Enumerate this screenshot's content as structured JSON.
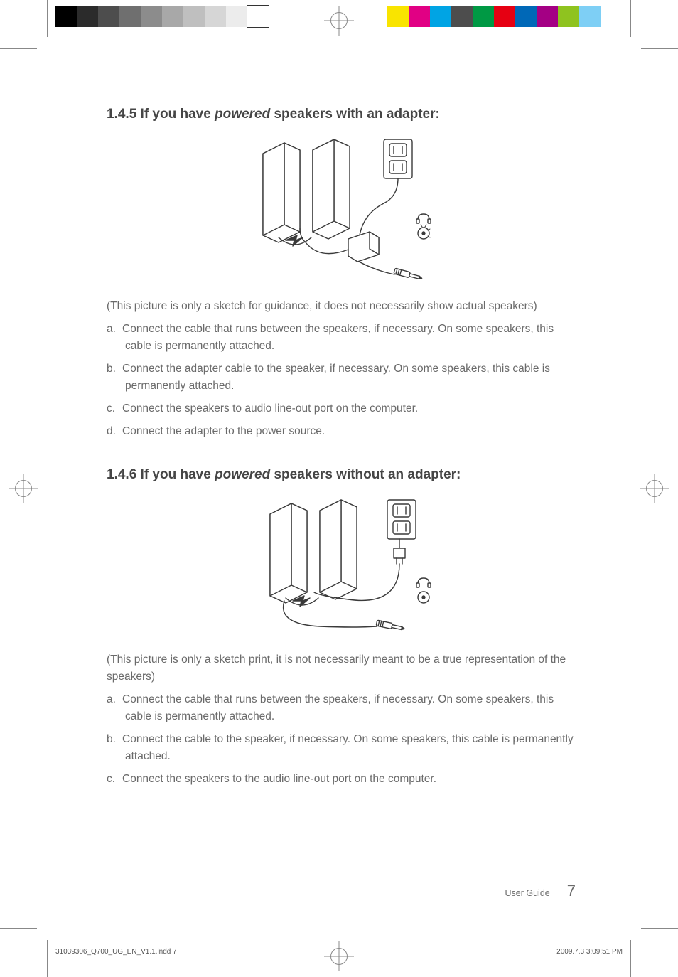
{
  "registration": {
    "left_strip_colors": [
      "#000000",
      "#2b2b2b",
      "#4d4d4d",
      "#6f6f6f",
      "#8c8c8c",
      "#a8a8a8",
      "#bfbfbf",
      "#d6d6d6",
      "#ececec",
      "#ffffff"
    ],
    "right_strip_colors": [
      "#f9e400",
      "#e10084",
      "#00a4e4",
      "#4d4d4d",
      "#009944",
      "#e60012",
      "#0068b7",
      "#a40084",
      "#8fc31f",
      "#7ecff5"
    ],
    "crosshair_color": "#888888"
  },
  "section1": {
    "heading_prefix": "1.4.5 If you have ",
    "heading_emph": "powered",
    "heading_suffix": " speakers with an adapter:",
    "caption": "(This picture is only a sketch for guidance, it does not necessarily show actual speakers)",
    "items": [
      {
        "label": "a.",
        "text": "Connect the cable that runs between the speakers, if necessary. On some speakers, this cable is permanently attached."
      },
      {
        "label": "b.",
        "text": "Connect the adapter cable to the speaker, if necessary. On some speakers, this cable is permanently attached."
      },
      {
        "label": "c.",
        "text": "Connect the speakers to audio line-out port on the computer."
      },
      {
        "label": "d.",
        "text": "Connect the adapter to the power source."
      }
    ],
    "diagram": {
      "type": "line-illustration",
      "elements": [
        "two-speakers",
        "wall-outlet",
        "power-adapter",
        "headphone-icon",
        "line-out-icon",
        "audio-jack"
      ],
      "stroke_color": "#3a3a3a",
      "fill_color": "#ffffff",
      "stroke_width": 1.4
    }
  },
  "section2": {
    "heading_prefix": "1.4.6 If you have ",
    "heading_emph": "powered",
    "heading_suffix": " speakers without an adapter:",
    "caption": "(This picture is only a sketch print, it is not necessarily meant to be a true representation of the speakers)",
    "items": [
      {
        "label": "a.",
        "text": "Connect the cable that runs between the speakers, if necessary. On some speakers, this cable is permanently attached."
      },
      {
        "label": "b.",
        "text": "Connect the cable to the speaker, if necessary. On some speakers, this cable is permanently attached."
      },
      {
        "label": "c.",
        "text": "Connect the speakers to the audio line-out port on the computer."
      }
    ],
    "diagram": {
      "type": "line-illustration",
      "elements": [
        "two-speakers",
        "wall-outlet",
        "power-plug",
        "headphone-icon",
        "line-out-icon",
        "audio-jack"
      ],
      "stroke_color": "#3a3a3a",
      "fill_color": "#ffffff",
      "stroke_width": 1.4
    }
  },
  "footer": {
    "guide_label": "User Guide",
    "page_number": "7"
  },
  "slug": {
    "file": "31039306_Q700_UG_EN_V1.1.indd   7",
    "date": "2009.7.3   3:09:51 PM"
  }
}
